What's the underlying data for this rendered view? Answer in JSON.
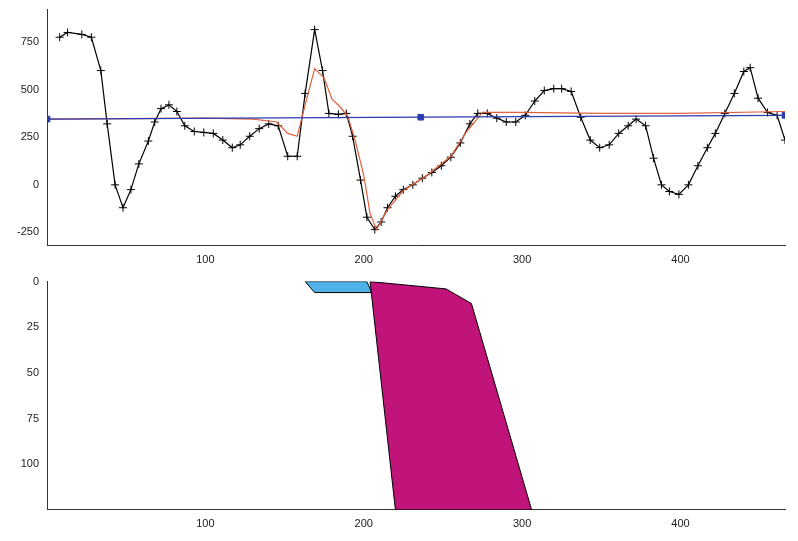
{
  "chart_data": [
    {
      "type": "line",
      "xlim": [
        0,
        466
      ],
      "xticks": [
        100,
        200,
        300,
        400
      ],
      "ylim": [
        -320,
        920
      ],
      "yticks": [
        -250,
        0,
        250,
        500,
        750
      ],
      "grid": false,
      "series": [
        {
          "color": "#2b3bb0",
          "marker": "square",
          "line_style": "solid",
          "x": [
            0,
            236,
            466
          ],
          "values": [
            345,
            355,
            365
          ]
        },
        {
          "color": "#e0603c",
          "marker": "none",
          "line_style": "solid",
          "x": [
            0,
            100,
            130,
            145,
            152,
            158,
            163,
            169,
            175,
            180,
            185,
            190,
            195,
            200,
            204,
            208,
            215,
            225,
            240,
            255,
            265,
            275,
            300,
            350,
            400,
            466
          ],
          "values": [
            345,
            350,
            345,
            330,
            270,
            255,
            420,
            610,
            560,
            450,
            410,
            360,
            220,
            50,
            -150,
            -235,
            -130,
            -30,
            50,
            150,
            280,
            380,
            380,
            375,
            375,
            385
          ]
        },
        {
          "color": "#000000",
          "marker": "plus",
          "line_style": "solid",
          "x": [
            8,
            13,
            22,
            28,
            34,
            38,
            43,
            48,
            53,
            58,
            64,
            68,
            72,
            77,
            82,
            87,
            93,
            99,
            105,
            111,
            117,
            122,
            128,
            134,
            140,
            146,
            152,
            158,
            163,
            169,
            174,
            178,
            184,
            189,
            193,
            198,
            202,
            207,
            211,
            215,
            220,
            225,
            231,
            237,
            243,
            249,
            255,
            261,
            267,
            272,
            278,
            284,
            290,
            296,
            302,
            308,
            314,
            320,
            325,
            331,
            337,
            343,
            349,
            355,
            361,
            367,
            372,
            378,
            383,
            388,
            393,
            399,
            405,
            411,
            417,
            422,
            428,
            434,
            440,
            444,
            449,
            455,
            461,
            466
          ],
          "values": [
            775,
            800,
            790,
            775,
            600,
            320,
            0,
            -120,
            -25,
            110,
            230,
            330,
            400,
            420,
            385,
            310,
            280,
            275,
            270,
            235,
            195,
            210,
            255,
            295,
            320,
            310,
            150,
            150,
            480,
            815,
            600,
            375,
            370,
            375,
            255,
            25,
            -170,
            -235,
            -195,
            -120,
            -60,
            -25,
            0,
            35,
            65,
            100,
            145,
            220,
            320,
            375,
            375,
            350,
            330,
            330,
            365,
            440,
            495,
            505,
            505,
            490,
            355,
            235,
            195,
            210,
            270,
            310,
            345,
            310,
            140,
            0,
            -35,
            -50,
            0,
            100,
            195,
            270,
            375,
            480,
            595,
            615,
            455,
            380,
            365,
            235
          ]
        }
      ]
    },
    {
      "type": "polygon",
      "xlim": [
        0,
        466
      ],
      "xticks": [
        100,
        200,
        300,
        400
      ],
      "ylim": [
        125,
        0
      ],
      "yticks": [
        0,
        25,
        50,
        75,
        100
      ],
      "grid": false,
      "series": [
        {
          "color": "#4fb3ea",
          "x": [
            163,
            202,
            205,
            169
          ],
          "values": [
            0,
            0,
            6,
            6
          ]
        },
        {
          "color": "#c0147a",
          "x": [
            204,
            252,
            268,
            306,
            220
          ],
          "values": [
            0,
            4,
            12,
            125,
            125
          ]
        }
      ]
    }
  ]
}
